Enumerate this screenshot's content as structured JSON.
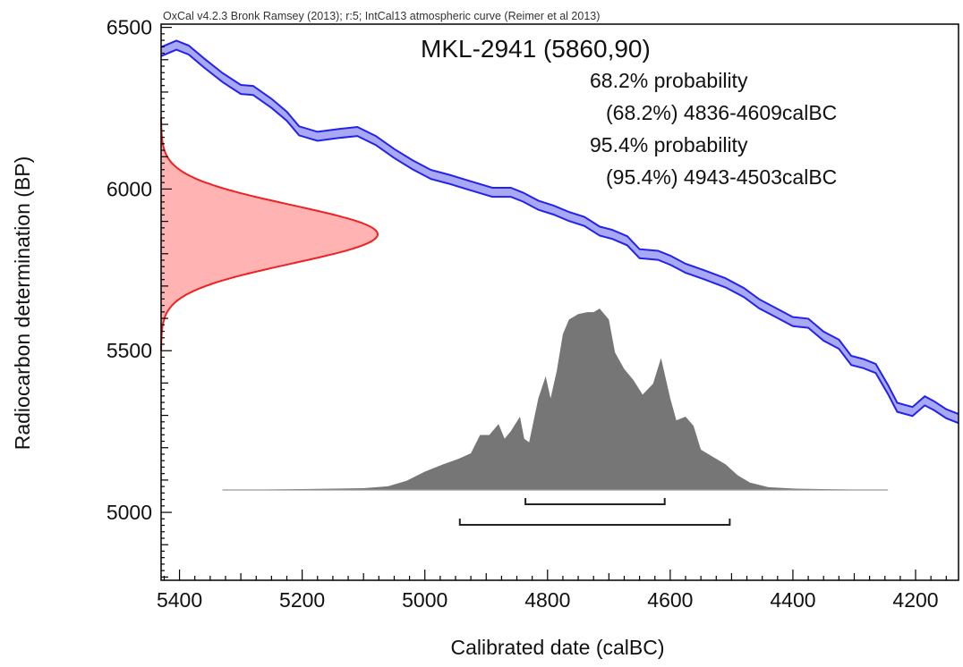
{
  "header": "OxCal v4.2.3 Bronk Ramsey (2013); r:5; IntCal13 atmospheric curve (Reimer et al 2013)",
  "chart_data": {
    "type": "area",
    "title": "MKL-2941 (5860,90)",
    "xlabel": "Calibrated date (calBC)",
    "ylabel": "Radiocarbon determination (BP)",
    "x_axis_reversed": true,
    "xlim": [
      5430,
      4130
    ],
    "ylim": [
      4790,
      6510
    ],
    "x_ticks": [
      5400,
      5200,
      5000,
      4800,
      4600,
      4400,
      4200
    ],
    "y_ticks": [
      5000,
      5500,
      6000,
      6500
    ],
    "x_tick_labels": [
      "5400",
      "5200",
      "5000",
      "4800",
      "4600",
      "4400",
      "4200"
    ],
    "y_tick_labels": [
      "5000",
      "5500",
      "6000",
      "6500"
    ],
    "ranges": [
      {
        "label": "68.2% probability",
        "detail": "(68.2%) 4836-4609calBC",
        "from": 4836,
        "to": 4609
      },
      {
        "label": "95.4% probability",
        "detail": "(95.4%) 4943-4503calBC",
        "from": 4943,
        "to": 4503
      }
    ],
    "measurement": {
      "name": "MKL-2941",
      "mean_bp": 5860,
      "sigma_bp": 90,
      "color": "#ee2222",
      "fill": "#ffb3b3"
    },
    "calibration_curve": {
      "name": "IntCal13 atmospheric curve",
      "color": "#2222ee",
      "fill": "#a8a8f5",
      "sigma_bp": 14,
      "points": [
        [
          5430,
          6425
        ],
        [
          5405,
          6445
        ],
        [
          5385,
          6430
        ],
        [
          5360,
          6390
        ],
        [
          5330,
          6345
        ],
        [
          5300,
          6308
        ],
        [
          5280,
          6305
        ],
        [
          5250,
          6265
        ],
        [
          5225,
          6225
        ],
        [
          5205,
          6180
        ],
        [
          5175,
          6163
        ],
        [
          5140,
          6172
        ],
        [
          5110,
          6178
        ],
        [
          5080,
          6150
        ],
        [
          5050,
          6110
        ],
        [
          5020,
          6075
        ],
        [
          4990,
          6045
        ],
        [
          4960,
          6030
        ],
        [
          4925,
          6010
        ],
        [
          4890,
          5990
        ],
        [
          4860,
          5990
        ],
        [
          4840,
          5975
        ],
        [
          4815,
          5950
        ],
        [
          4790,
          5935
        ],
        [
          4765,
          5915
        ],
        [
          4740,
          5900
        ],
        [
          4715,
          5870
        ],
        [
          4695,
          5860
        ],
        [
          4670,
          5840
        ],
        [
          4650,
          5800
        ],
        [
          4620,
          5795
        ],
        [
          4600,
          5780
        ],
        [
          4575,
          5755
        ],
        [
          4545,
          5735
        ],
        [
          4510,
          5710
        ],
        [
          4480,
          5680
        ],
        [
          4455,
          5645
        ],
        [
          4430,
          5620
        ],
        [
          4400,
          5590
        ],
        [
          4375,
          5585
        ],
        [
          4350,
          5545
        ],
        [
          4325,
          5520
        ],
        [
          4305,
          5470
        ],
        [
          4285,
          5460
        ],
        [
          4265,
          5445
        ],
        [
          4245,
          5380
        ],
        [
          4230,
          5325
        ],
        [
          4205,
          5312
        ],
        [
          4185,
          5345
        ],
        [
          4170,
          5330
        ],
        [
          4150,
          5305
        ],
        [
          4130,
          5290
        ]
      ]
    },
    "calibrated_distribution": {
      "color": "#767676",
      "baseline_from": 5330,
      "baseline_to": 4245,
      "points": [
        [
          5330,
          0
        ],
        [
          5200,
          0.005
        ],
        [
          5100,
          0.01
        ],
        [
          5060,
          0.02
        ],
        [
          5030,
          0.05
        ],
        [
          5000,
          0.1
        ],
        [
          4970,
          0.14
        ],
        [
          4945,
          0.17
        ],
        [
          4925,
          0.2
        ],
        [
          4910,
          0.3
        ],
        [
          4895,
          0.3
        ],
        [
          4880,
          0.36
        ],
        [
          4870,
          0.28
        ],
        [
          4860,
          0.32
        ],
        [
          4845,
          0.4
        ],
        [
          4838,
          0.28
        ],
        [
          4830,
          0.26
        ],
        [
          4815,
          0.5
        ],
        [
          4803,
          0.62
        ],
        [
          4795,
          0.5
        ],
        [
          4785,
          0.65
        ],
        [
          4775,
          0.85
        ],
        [
          4765,
          0.93
        ],
        [
          4750,
          0.96
        ],
        [
          4735,
          0.97
        ],
        [
          4725,
          0.97
        ],
        [
          4715,
          0.99
        ],
        [
          4700,
          0.93
        ],
        [
          4690,
          0.75
        ],
        [
          4675,
          0.66
        ],
        [
          4660,
          0.6
        ],
        [
          4645,
          0.52
        ],
        [
          4628,
          0.58
        ],
        [
          4615,
          0.72
        ],
        [
          4600,
          0.5
        ],
        [
          4590,
          0.38
        ],
        [
          4575,
          0.4
        ],
        [
          4562,
          0.35
        ],
        [
          4550,
          0.22
        ],
        [
          4530,
          0.18
        ],
        [
          4510,
          0.14
        ],
        [
          4490,
          0.08
        ],
        [
          4470,
          0.04
        ],
        [
          4440,
          0.015
        ],
        [
          4400,
          0.008
        ],
        [
          4330,
          0.004
        ],
        [
          4245,
          0
        ]
      ]
    }
  }
}
